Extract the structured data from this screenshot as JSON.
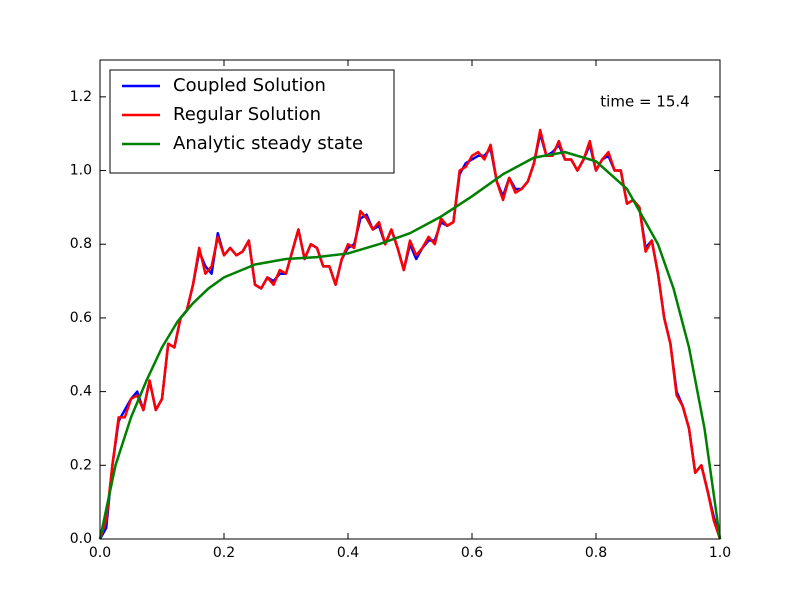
{
  "chart_data": {
    "type": "line",
    "annotation": "time = 15.4",
    "xlim": [
      0,
      1
    ],
    "ylim": [
      0,
      1.3
    ],
    "xticks": [
      {
        "value": 0,
        "label": "0.0"
      },
      0.2,
      0.4,
      0.6,
      0.8,
      {
        "value": 1,
        "label": "1.0"
      }
    ],
    "yticks": [
      {
        "value": 0,
        "label": "0.0"
      },
      0.2,
      0.4,
      0.6,
      0.8,
      {
        "value": 1,
        "label": "1.0"
      },
      1.2
    ],
    "legend": "upper left",
    "series": [
      {
        "name": "Coupled Solution",
        "color": "#0000ff",
        "x": [
          0,
          0.01,
          0.02,
          0.03,
          0.04,
          0.05,
          0.06,
          0.07,
          0.08,
          0.09,
          0.1,
          0.11,
          0.12,
          0.13,
          0.14,
          0.15,
          0.16,
          0.17,
          0.18,
          0.19,
          0.2,
          0.21,
          0.22,
          0.23,
          0.24,
          0.25,
          0.26,
          0.27,
          0.28,
          0.29,
          0.3,
          0.31,
          0.32,
          0.33,
          0.34,
          0.35,
          0.36,
          0.37,
          0.38,
          0.39,
          0.4,
          0.41,
          0.42,
          0.43,
          0.44,
          0.45,
          0.46,
          0.47,
          0.48,
          0.49,
          0.5,
          0.51,
          0.52,
          0.53,
          0.54,
          0.55,
          0.56,
          0.57,
          0.58,
          0.59,
          0.6,
          0.61,
          0.62,
          0.63,
          0.64,
          0.65,
          0.66,
          0.67,
          0.68,
          0.69,
          0.7,
          0.71,
          0.72,
          0.73,
          0.74,
          0.75,
          0.76,
          0.77,
          0.78,
          0.79,
          0.8,
          0.81,
          0.82,
          0.83,
          0.84,
          0.85,
          0.86,
          0.87,
          0.88,
          0.89,
          0.9,
          0.91,
          0.92,
          0.93,
          0.94,
          0.95,
          0.96,
          0.97,
          0.98,
          0.99,
          1
        ],
        "values": [
          0,
          0.03,
          0.2,
          0.32,
          0.35,
          0.38,
          0.4,
          0.35,
          0.43,
          0.35,
          0.38,
          0.53,
          0.52,
          0.6,
          0.62,
          0.69,
          0.78,
          0.74,
          0.72,
          0.83,
          0.77,
          0.79,
          0.77,
          0.78,
          0.81,
          0.69,
          0.68,
          0.71,
          0.7,
          0.72,
          0.72,
          0.78,
          0.84,
          0.76,
          0.8,
          0.79,
          0.74,
          0.74,
          0.69,
          0.76,
          0.79,
          0.8,
          0.87,
          0.88,
          0.84,
          0.85,
          0.8,
          0.84,
          0.79,
          0.73,
          0.8,
          0.76,
          0.79,
          0.81,
          0.81,
          0.86,
          0.85,
          0.86,
          0.99,
          1.02,
          1.03,
          1.04,
          1.04,
          1.06,
          0.97,
          0.93,
          0.98,
          0.95,
          0.95,
          0.97,
          1.02,
          1.1,
          1.04,
          1.05,
          1.07,
          1.03,
          1.03,
          1.0,
          1.03,
          1.07,
          1.0,
          1.03,
          1.04,
          1.0,
          1.0,
          0.91,
          0.92,
          0.9,
          0.79,
          0.81,
          0.72,
          0.6,
          0.53,
          0.4,
          0.36,
          0.3,
          0.18,
          0.2,
          0.13,
          0.06,
          0
        ]
      },
      {
        "name": "Regular Solution",
        "color": "#ff0000",
        "x": [
          0,
          0.01,
          0.02,
          0.03,
          0.04,
          0.05,
          0.06,
          0.07,
          0.08,
          0.09,
          0.1,
          0.11,
          0.12,
          0.13,
          0.14,
          0.15,
          0.16,
          0.17,
          0.18,
          0.19,
          0.2,
          0.21,
          0.22,
          0.23,
          0.24,
          0.25,
          0.26,
          0.27,
          0.28,
          0.29,
          0.3,
          0.31,
          0.32,
          0.33,
          0.34,
          0.35,
          0.36,
          0.37,
          0.38,
          0.39,
          0.4,
          0.41,
          0.42,
          0.43,
          0.44,
          0.45,
          0.46,
          0.47,
          0.48,
          0.49,
          0.5,
          0.51,
          0.52,
          0.53,
          0.54,
          0.55,
          0.56,
          0.57,
          0.58,
          0.59,
          0.6,
          0.61,
          0.62,
          0.63,
          0.64,
          0.65,
          0.66,
          0.67,
          0.68,
          0.69,
          0.7,
          0.71,
          0.72,
          0.73,
          0.74,
          0.75,
          0.76,
          0.77,
          0.78,
          0.79,
          0.8,
          0.81,
          0.82,
          0.83,
          0.84,
          0.85,
          0.86,
          0.87,
          0.88,
          0.89,
          0.9,
          0.91,
          0.92,
          0.93,
          0.94,
          0.95,
          0.96,
          0.97,
          0.98,
          0.99,
          1
        ],
        "values": [
          0,
          0.05,
          0.2,
          0.33,
          0.33,
          0.38,
          0.39,
          0.35,
          0.43,
          0.35,
          0.38,
          0.53,
          0.52,
          0.6,
          0.62,
          0.69,
          0.79,
          0.72,
          0.74,
          0.82,
          0.77,
          0.79,
          0.77,
          0.78,
          0.81,
          0.69,
          0.68,
          0.71,
          0.69,
          0.73,
          0.72,
          0.78,
          0.84,
          0.76,
          0.8,
          0.79,
          0.74,
          0.74,
          0.69,
          0.76,
          0.8,
          0.79,
          0.89,
          0.87,
          0.84,
          0.86,
          0.8,
          0.84,
          0.79,
          0.73,
          0.81,
          0.77,
          0.79,
          0.82,
          0.8,
          0.87,
          0.85,
          0.86,
          1.0,
          1.01,
          1.04,
          1.05,
          1.03,
          1.07,
          0.97,
          0.92,
          0.98,
          0.94,
          0.95,
          0.97,
          1.02,
          1.11,
          1.04,
          1.04,
          1.08,
          1.03,
          1.03,
          1.0,
          1.03,
          1.08,
          1.0,
          1.03,
          1.05,
          1.0,
          1.0,
          0.91,
          0.92,
          0.9,
          0.78,
          0.81,
          0.72,
          0.6,
          0.53,
          0.39,
          0.36,
          0.3,
          0.18,
          0.2,
          0.13,
          0.05,
          0
        ]
      },
      {
        "name": "Analytic steady state",
        "color": "#008000",
        "x": [
          0,
          0.025,
          0.05,
          0.075,
          0.1,
          0.125,
          0.15,
          0.175,
          0.2,
          0.25,
          0.3,
          0.35,
          0.4,
          0.45,
          0.5,
          0.55,
          0.6,
          0.65,
          0.7,
          0.75,
          0.8,
          0.85,
          0.9,
          0.925,
          0.95,
          0.975,
          1
        ],
        "values": [
          0,
          0.2,
          0.33,
          0.43,
          0.52,
          0.59,
          0.64,
          0.68,
          0.71,
          0.745,
          0.76,
          0.765,
          0.775,
          0.8,
          0.83,
          0.875,
          0.93,
          0.99,
          1.035,
          1.05,
          1.025,
          0.95,
          0.8,
          0.68,
          0.52,
          0.3,
          0
        ]
      }
    ]
  }
}
